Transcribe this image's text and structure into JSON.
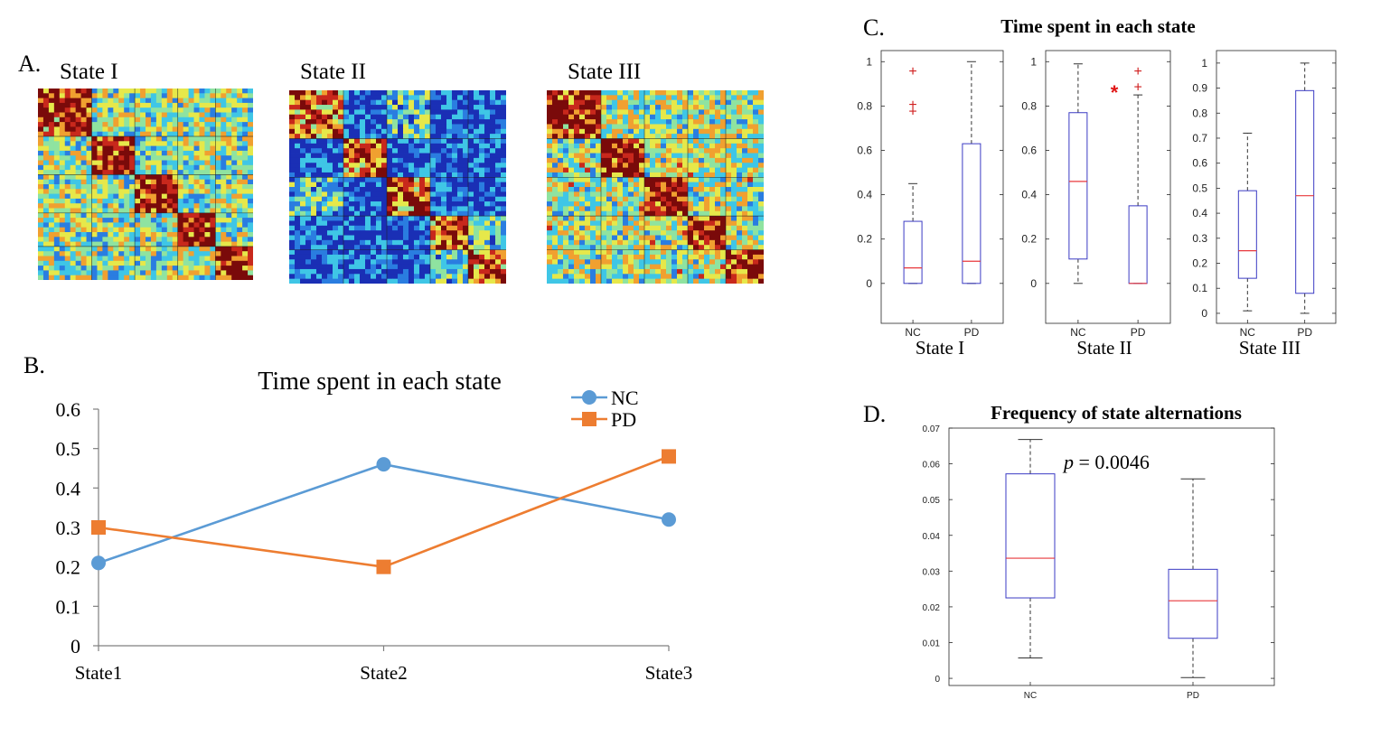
{
  "panel_letters": {
    "a": "A.",
    "b": "B.",
    "c": "C.",
    "d": "D."
  },
  "panelA": {
    "titles": [
      "State I",
      "State II",
      "State III"
    ],
    "colormap": [
      "#1a2fb5",
      "#2a7de0",
      "#3fc6e6",
      "#8fe3a0",
      "#e6e84a",
      "#f0a030",
      "#c8281c",
      "#7a0a0a"
    ]
  },
  "chart_data": [
    {
      "type": "line",
      "panel": "B",
      "title": "Time spent in each state",
      "categories": [
        "State1",
        "State2",
        "State3"
      ],
      "series": [
        {
          "name": "NC",
          "color": "#5b9bd5",
          "marker": "circle",
          "values": [
            0.21,
            0.46,
            0.32
          ]
        },
        {
          "name": "PD",
          "color": "#ed7d31",
          "marker": "square",
          "values": [
            0.3,
            0.2,
            0.48
          ]
        }
      ],
      "yticks": [
        "0",
        "0.1",
        "0.2",
        "0.3",
        "0.4",
        "0.5",
        "0.6"
      ],
      "ylim": [
        0,
        0.6
      ],
      "legend": "top-right"
    },
    {
      "type": "boxplot",
      "panel": "C",
      "title": "Time spent in each state",
      "significance_mark": "*",
      "subplots": [
        {
          "label": "State I",
          "ylim": [
            -0.18,
            1.05
          ],
          "yticks": [
            "0",
            "0.2",
            "0.4",
            "0.6",
            "0.8",
            "1"
          ],
          "ytick_values": [
            0,
            0.2,
            0.4,
            0.6,
            0.8,
            1
          ],
          "groups": [
            {
              "name": "NC",
              "whislo": 0,
              "q1": 0,
              "med": 0.07,
              "q3": 0.28,
              "whishi": 0.45,
              "outliers": [
                0.78,
                0.81,
                0.96
              ]
            },
            {
              "name": "PD",
              "whislo": 0,
              "q1": 0,
              "med": 0.1,
              "q3": 0.63,
              "whishi": 1.0,
              "outliers": []
            }
          ]
        },
        {
          "label": "State II",
          "ylim": [
            -0.18,
            1.05
          ],
          "yticks": [
            "0",
            "0.2",
            "0.4",
            "0.6",
            "0.8",
            "1"
          ],
          "ytick_values": [
            0,
            0.2,
            0.4,
            0.6,
            0.8,
            1
          ],
          "groups": [
            {
              "name": "NC",
              "whislo": 0,
              "q1": 0.11,
              "med": 0.46,
              "q3": 0.77,
              "whishi": 0.99,
              "outliers": []
            },
            {
              "name": "PD",
              "whislo": 0,
              "q1": 0,
              "med": 0,
              "q3": 0.35,
              "whishi": 0.85,
              "outliers": [
                0.89,
                0.96
              ]
            }
          ]
        },
        {
          "label": "State III",
          "ylim": [
            -0.04,
            1.05
          ],
          "yticks": [
            "0",
            "0.1",
            "0.2",
            "0.3",
            "0.4",
            "0.5",
            "0.6",
            "0.7",
            "0.8",
            "0.9",
            "1"
          ],
          "ytick_values": [
            0,
            0.1,
            0.2,
            0.3,
            0.4,
            0.5,
            0.6,
            0.7,
            0.8,
            0.9,
            1
          ],
          "groups": [
            {
              "name": "NC",
              "whislo": 0.01,
              "q1": 0.14,
              "med": 0.25,
              "q3": 0.49,
              "whishi": 0.72,
              "outliers": []
            },
            {
              "name": "PD",
              "whislo": 0,
              "q1": 0.08,
              "med": 0.47,
              "q3": 0.89,
              "whishi": 1.0,
              "outliers": []
            }
          ]
        }
      ]
    },
    {
      "type": "boxplot",
      "panel": "D",
      "title": "Frequency of state alternations",
      "annotation": {
        "italic": "p",
        "rest": " = 0.0046"
      },
      "ylim": [
        -0.002,
        0.07
      ],
      "yticks": [
        "0",
        "0.01",
        "0.02",
        "0.03",
        "0.04",
        "0.05",
        "0.06",
        "0.07"
      ],
      "ytick_values": [
        0,
        0.01,
        0.02,
        0.03,
        0.04,
        0.05,
        0.06,
        0.07
      ],
      "groups": [
        {
          "name": "NC",
          "whislo": 0.0057,
          "q1": 0.0225,
          "med": 0.0336,
          "q3": 0.0572,
          "whishi": 0.0668,
          "outliers": []
        },
        {
          "name": "PD",
          "whislo": 0.0002,
          "q1": 0.0112,
          "med": 0.0217,
          "q3": 0.0305,
          "whishi": 0.0558,
          "outliers": []
        }
      ]
    }
  ]
}
